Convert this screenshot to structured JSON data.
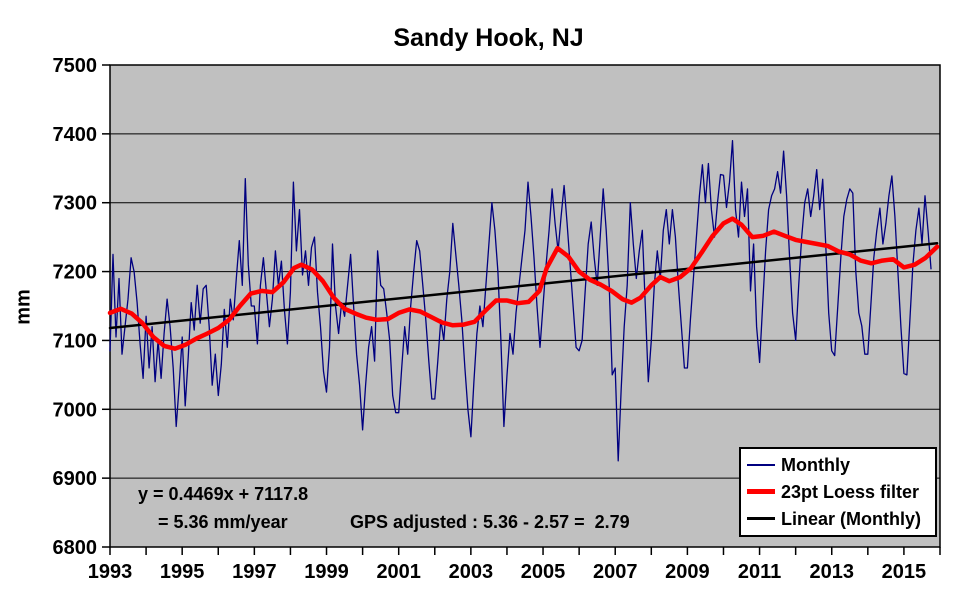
{
  "chart_data": {
    "type": "line",
    "title": "Sandy Hook, NJ",
    "xlabel": "",
    "ylabel": "mm",
    "ylim": [
      6800,
      7500
    ],
    "xlim": [
      1993,
      2016
    ],
    "y_ticks": [
      6800,
      6900,
      7000,
      7100,
      7200,
      7300,
      7400,
      7500
    ],
    "x_major_ticks": [
      1993,
      1995,
      1997,
      1999,
      2001,
      2003,
      2005,
      2007,
      2009,
      2011,
      2013,
      2015
    ],
    "x_minor_tick_step_years": 1,
    "plot_bg": "#c0c0c0",
    "grid": {
      "horizontal": true,
      "vertical": false,
      "color": "#000000"
    },
    "legend": {
      "position": "bottom-right-inside",
      "entries": [
        {
          "label": "Monthly",
          "color": "#000080",
          "thickness": 2
        },
        {
          "label": "23pt Loess filter",
          "color": "#ff0000",
          "thickness": 5
        },
        {
          "label": "Linear (Monthly)",
          "color": "#000000",
          "thickness": 3
        }
      ]
    },
    "annotations": [
      {
        "id": "eq-line1",
        "text": "y = 0.4469x + 7117.8"
      },
      {
        "id": "eq-line2",
        "text": "= 5.36 mm/year"
      },
      {
        "id": "gps",
        "text": "GPS adjusted : 5.36 - 2.57 =  2.79"
      }
    ],
    "series": [
      {
        "name": "Monthly",
        "color": "#000080",
        "width": 1.3,
        "x_start_year": 1993.0,
        "x_step_years": 0.0833333,
        "values": [
          7085,
          7225,
          7105,
          7190,
          7080,
          7120,
          7160,
          7220,
          7200,
          7155,
          7095,
          7045,
          7135,
          7060,
          7120,
          7040,
          7100,
          7045,
          7110,
          7160,
          7120,
          7060,
          6975,
          7035,
          7105,
          7005,
          7075,
          7155,
          7115,
          7180,
          7125,
          7175,
          7180,
          7120,
          7035,
          7080,
          7020,
          7065,
          7145,
          7090,
          7160,
          7130,
          7190,
          7245,
          7180,
          7335,
          7210,
          7150,
          7150,
          7095,
          7180,
          7220,
          7170,
          7120,
          7160,
          7230,
          7180,
          7215,
          7145,
          7095,
          7170,
          7330,
          7230,
          7290,
          7195,
          7230,
          7180,
          7235,
          7250,
          7170,
          7120,
          7055,
          7025,
          7090,
          7240,
          7150,
          7110,
          7155,
          7135,
          7180,
          7225,
          7150,
          7080,
          7035,
          6970,
          7035,
          7090,
          7120,
          7070,
          7230,
          7180,
          7175,
          7140,
          7100,
          7020,
          6995,
          6995,
          7060,
          7120,
          7080,
          7150,
          7200,
          7245,
          7230,
          7180,
          7130,
          7070,
          7015,
          7015,
          7070,
          7130,
          7100,
          7160,
          7200,
          7270,
          7225,
          7180,
          7130,
          7060,
          7000,
          6960,
          7040,
          7110,
          7150,
          7120,
          7180,
          7240,
          7300,
          7260,
          7200,
          7100,
          6975,
          7050,
          7110,
          7080,
          7140,
          7180,
          7220,
          7260,
          7330,
          7280,
          7220,
          7150,
          7090,
          7150,
          7210,
          7260,
          7320,
          7270,
          7230,
          7280,
          7325,
          7270,
          7210,
          7150,
          7090,
          7085,
          7100,
          7170,
          7240,
          7272,
          7220,
          7180,
          7250,
          7320,
          7260,
          7180,
          7050,
          7060,
          6925,
          7030,
          7120,
          7180,
          7300,
          7240,
          7190,
          7230,
          7260,
          7150,
          7040,
          7100,
          7180,
          7230,
          7190,
          7260,
          7290,
          7240,
          7290,
          7250,
          7180,
          7120,
          7060,
          7060,
          7130,
          7190,
          7250,
          7310,
          7355,
          7300,
          7357,
          7290,
          7250,
          7300,
          7341,
          7340,
          7293,
          7330,
          7390,
          7290,
          7250,
          7330,
          7280,
          7320,
          7172,
          7240,
          7120,
          7068,
          7150,
          7230,
          7290,
          7310,
          7320,
          7345,
          7314,
          7375,
          7310,
          7220,
          7140,
          7100,
          7180,
          7250,
          7300,
          7320,
          7280,
          7310,
          7348,
          7290,
          7334,
          7240,
          7140,
          7085,
          7078,
          7150,
          7220,
          7280,
          7305,
          7320,
          7314,
          7200,
          7140,
          7121,
          7080,
          7080,
          7150,
          7220,
          7260,
          7292,
          7240,
          7270,
          7310,
          7339,
          7280,
          7200,
          7120,
          7052,
          7050,
          7130,
          7210,
          7260,
          7292,
          7240,
          7310,
          7260,
          7204
        ]
      },
      {
        "name": "23pt Loess filter",
        "color": "#ff0000",
        "width": 4.5,
        "points": [
          [
            1993.0,
            7140
          ],
          [
            1993.3,
            7146
          ],
          [
            1993.6,
            7139
          ],
          [
            1993.9,
            7125
          ],
          [
            1994.2,
            7105
          ],
          [
            1994.5,
            7092
          ],
          [
            1994.8,
            7088
          ],
          [
            1995.1,
            7094
          ],
          [
            1995.4,
            7103
          ],
          [
            1995.7,
            7110
          ],
          [
            1996.0,
            7118
          ],
          [
            1996.3,
            7130
          ],
          [
            1996.6,
            7150
          ],
          [
            1996.9,
            7168
          ],
          [
            1997.2,
            7172
          ],
          [
            1997.5,
            7170
          ],
          [
            1997.8,
            7184
          ],
          [
            1998.1,
            7205
          ],
          [
            1998.3,
            7210
          ],
          [
            1998.6,
            7203
          ],
          [
            1998.9,
            7186
          ],
          [
            1999.2,
            7162
          ],
          [
            1999.5,
            7146
          ],
          [
            1999.8,
            7139
          ],
          [
            2000.1,
            7133
          ],
          [
            2000.4,
            7130
          ],
          [
            2000.7,
            7131
          ],
          [
            2001.0,
            7140
          ],
          [
            2001.3,
            7145
          ],
          [
            2001.6,
            7142
          ],
          [
            2001.9,
            7134
          ],
          [
            2002.2,
            7126
          ],
          [
            2002.5,
            7122
          ],
          [
            2002.8,
            7123
          ],
          [
            2003.1,
            7127
          ],
          [
            2003.4,
            7143
          ],
          [
            2003.7,
            7158
          ],
          [
            2004.0,
            7158
          ],
          [
            2004.3,
            7154
          ],
          [
            2004.6,
            7156
          ],
          [
            2004.9,
            7172
          ],
          [
            2005.1,
            7205
          ],
          [
            2005.4,
            7234
          ],
          [
            2005.7,
            7222
          ],
          [
            2006.0,
            7200
          ],
          [
            2006.3,
            7188
          ],
          [
            2006.6,
            7181
          ],
          [
            2006.9,
            7172
          ],
          [
            2007.2,
            7160
          ],
          [
            2007.45,
            7155
          ],
          [
            2007.7,
            7162
          ],
          [
            2008.0,
            7180
          ],
          [
            2008.25,
            7192
          ],
          [
            2008.5,
            7186
          ],
          [
            2008.8,
            7192
          ],
          [
            2009.1,
            7205
          ],
          [
            2009.4,
            7228
          ],
          [
            2009.7,
            7252
          ],
          [
            2010.0,
            7270
          ],
          [
            2010.25,
            7277
          ],
          [
            2010.5,
            7268
          ],
          [
            2010.8,
            7250
          ],
          [
            2011.1,
            7252
          ],
          [
            2011.4,
            7258
          ],
          [
            2011.7,
            7252
          ],
          [
            2012.0,
            7246
          ],
          [
            2012.3,
            7243
          ],
          [
            2012.6,
            7240
          ],
          [
            2012.9,
            7237
          ],
          [
            2013.2,
            7229
          ],
          [
            2013.5,
            7225
          ],
          [
            2013.8,
            7216
          ],
          [
            2014.1,
            7212
          ],
          [
            2014.4,
            7216
          ],
          [
            2014.7,
            7218
          ],
          [
            2015.0,
            7206
          ],
          [
            2015.3,
            7210
          ],
          [
            2015.6,
            7220
          ],
          [
            2015.92,
            7236
          ]
        ]
      },
      {
        "name": "Linear (Monthly)",
        "color": "#000000",
        "width": 2.5,
        "points": [
          [
            1993.0,
            7118
          ],
          [
            2015.92,
            7241
          ]
        ],
        "equation": "y = 0.4469x + 7117.8",
        "slope_mm_per_year": 5.36,
        "gps_adjusted_mm_per_year": 2.79
      }
    ]
  }
}
